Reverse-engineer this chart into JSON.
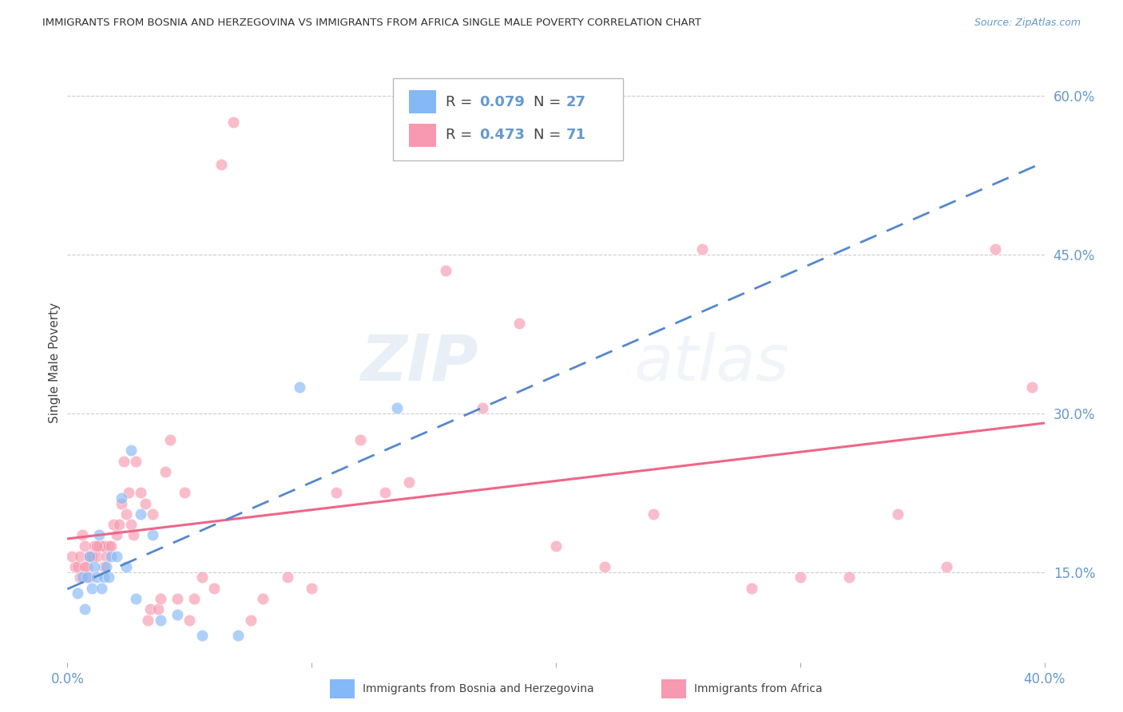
{
  "title": "IMMIGRANTS FROM BOSNIA AND HERZEGOVINA VS IMMIGRANTS FROM AFRICA SINGLE MALE POVERTY CORRELATION CHART",
  "source": "Source: ZipAtlas.com",
  "ylabel": "Single Male Poverty",
  "xlim": [
    0.0,
    0.4
  ],
  "ylim": [
    0.065,
    0.63
  ],
  "yticks_right": [
    0.15,
    0.3,
    0.45,
    0.6
  ],
  "ytick_labels_right": [
    "15.0%",
    "30.0%",
    "45.0%",
    "60.0%"
  ],
  "grid_color": "#cccccc",
  "background_color": "#ffffff",
  "watermark_zip": "ZIP",
  "watermark_atlas": "atlas",
  "legend_r1": "R = 0.079",
  "legend_n1": "N = 27",
  "legend_r2": "R = 0.473",
  "legend_n2": "N = 71",
  "color_bosnia": "#85b8f7",
  "color_africa": "#f799b0",
  "color_bosnia_line": "#5588cc",
  "color_africa_line": "#ee6688",
  "color_axis_text": "#6699cc",
  "color_title": "#333333",
  "bosnia_x": [
    0.004,
    0.006,
    0.007,
    0.008,
    0.009,
    0.01,
    0.011,
    0.012,
    0.013,
    0.014,
    0.015,
    0.016,
    0.017,
    0.018,
    0.02,
    0.022,
    0.024,
    0.026,
    0.028,
    0.03,
    0.035,
    0.038,
    0.045,
    0.055,
    0.07,
    0.095,
    0.135
  ],
  "bosnia_y": [
    0.13,
    0.145,
    0.115,
    0.145,
    0.165,
    0.135,
    0.155,
    0.145,
    0.185,
    0.135,
    0.145,
    0.155,
    0.145,
    0.165,
    0.165,
    0.22,
    0.155,
    0.265,
    0.125,
    0.205,
    0.185,
    0.105,
    0.11,
    0.09,
    0.09,
    0.325,
    0.305
  ],
  "africa_x": [
    0.002,
    0.003,
    0.004,
    0.005,
    0.006,
    0.007,
    0.008,
    0.009,
    0.01,
    0.011,
    0.012,
    0.013,
    0.014,
    0.015,
    0.016,
    0.017,
    0.018,
    0.019,
    0.02,
    0.021,
    0.022,
    0.023,
    0.024,
    0.025,
    0.026,
    0.027,
    0.028,
    0.03,
    0.032,
    0.033,
    0.034,
    0.035,
    0.037,
    0.038,
    0.04,
    0.042,
    0.045,
    0.048,
    0.05,
    0.052,
    0.055,
    0.06,
    0.063,
    0.068,
    0.075,
    0.08,
    0.09,
    0.1,
    0.11,
    0.12,
    0.13,
    0.14,
    0.155,
    0.17,
    0.185,
    0.2,
    0.22,
    0.24,
    0.26,
    0.28,
    0.3,
    0.32,
    0.34,
    0.36,
    0.38,
    0.395,
    0.005,
    0.007,
    0.009,
    0.012,
    0.015
  ],
  "africa_y": [
    0.165,
    0.155,
    0.155,
    0.165,
    0.185,
    0.175,
    0.155,
    0.165,
    0.165,
    0.175,
    0.165,
    0.175,
    0.175,
    0.175,
    0.165,
    0.175,
    0.175,
    0.195,
    0.185,
    0.195,
    0.215,
    0.255,
    0.205,
    0.225,
    0.195,
    0.185,
    0.255,
    0.225,
    0.215,
    0.105,
    0.115,
    0.205,
    0.115,
    0.125,
    0.245,
    0.275,
    0.125,
    0.225,
    0.105,
    0.125,
    0.145,
    0.135,
    0.535,
    0.575,
    0.105,
    0.125,
    0.145,
    0.135,
    0.225,
    0.275,
    0.225,
    0.235,
    0.435,
    0.305,
    0.385,
    0.175,
    0.155,
    0.205,
    0.455,
    0.135,
    0.145,
    0.145,
    0.205,
    0.155,
    0.455,
    0.325,
    0.145,
    0.155,
    0.145,
    0.175,
    0.155
  ]
}
